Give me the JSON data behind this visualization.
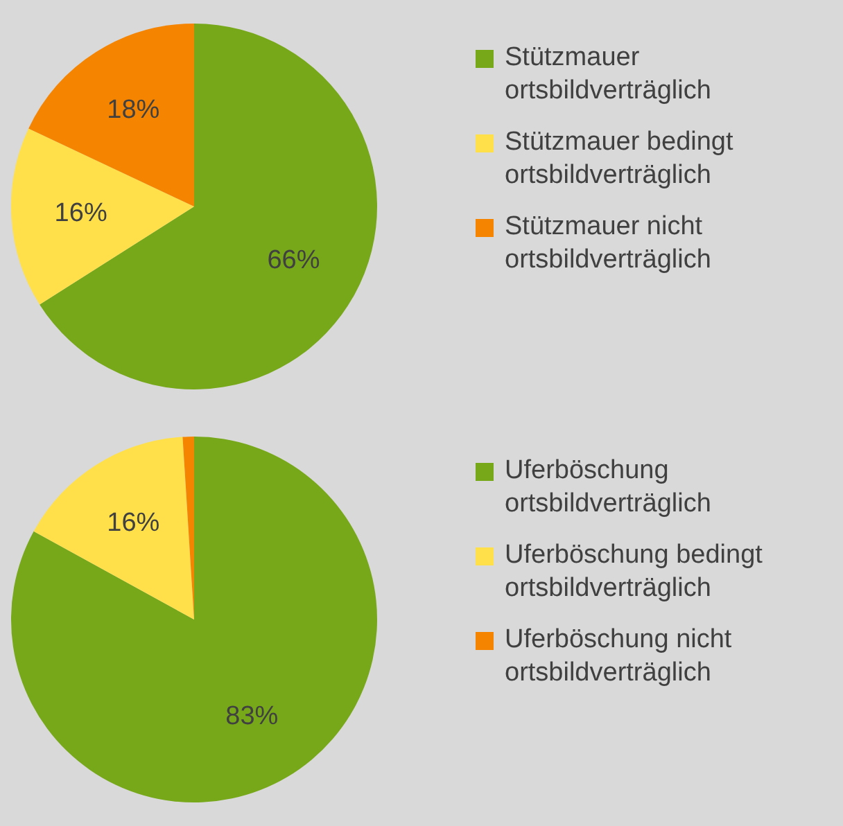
{
  "chart_data": [
    {
      "type": "pie",
      "categories": [
        "Stützmauer ortsbildverträglich",
        "Stützmauer bedingt ortsbildverträglich",
        "Stützmauer nicht ortsbildverträglich"
      ],
      "values": [
        66,
        16,
        18
      ],
      "value_labels": [
        "66%",
        "16%",
        "18%"
      ],
      "colors": [
        "#77a81a",
        "#ffe04a",
        "#f58400"
      ],
      "legend": "right"
    },
    {
      "type": "pie",
      "categories": [
        "Uferböschung ortsbildverträglich",
        "Uferböschung bedingt ortsbildverträglich",
        "Uferböschung nicht ortsbildverträglich"
      ],
      "values": [
        83,
        16,
        1
      ],
      "value_labels": [
        "83%",
        "16%",
        null
      ],
      "colors": [
        "#77a81a",
        "#ffe04a",
        "#f58400"
      ],
      "legend": "right"
    }
  ]
}
